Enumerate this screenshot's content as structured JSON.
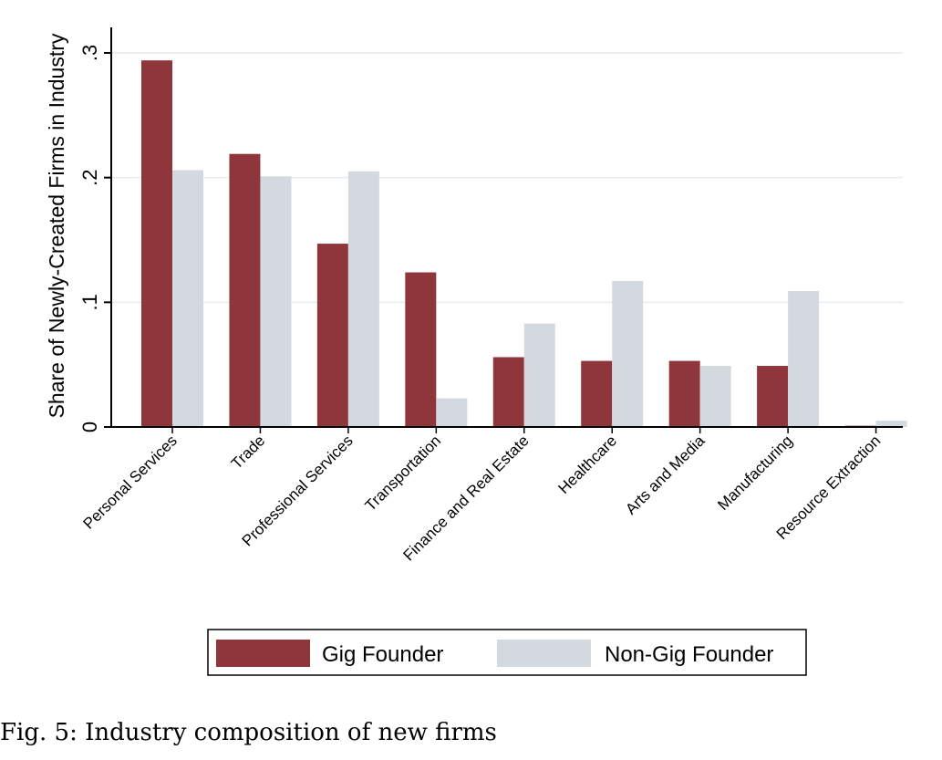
{
  "caption": "Fig. 5: Industry composition of new firms",
  "chart_data": {
    "type": "bar",
    "categories": [
      "Personal Services",
      "Trade",
      "Professional Services",
      "Transportation",
      "Finance and Real Estate",
      "Healthcare",
      "Arts and Media",
      "Manufacturing",
      "Resource Extraction"
    ],
    "series": [
      {
        "name": "Gig Founder",
        "color": "#8f363c",
        "values": [
          0.294,
          0.219,
          0.147,
          0.124,
          0.056,
          0.053,
          0.053,
          0.049,
          0.001
        ]
      },
      {
        "name": "Non-Gig Founder",
        "color": "#d3d9df",
        "values": [
          0.206,
          0.201,
          0.205,
          0.023,
          0.083,
          0.117,
          0.049,
          0.109,
          0.005
        ]
      }
    ],
    "title": "",
    "xlabel": "",
    "ylabel": "Share of Newly-Created Firms in Industry",
    "ylim": [
      0,
      0.3
    ],
    "yticks": [
      0,
      0.1,
      0.2,
      0.3
    ],
    "ytick_labels": [
      "0",
      ".1",
      ".2",
      ".3"
    ],
    "grid": true,
    "legend_position": "bottom"
  }
}
